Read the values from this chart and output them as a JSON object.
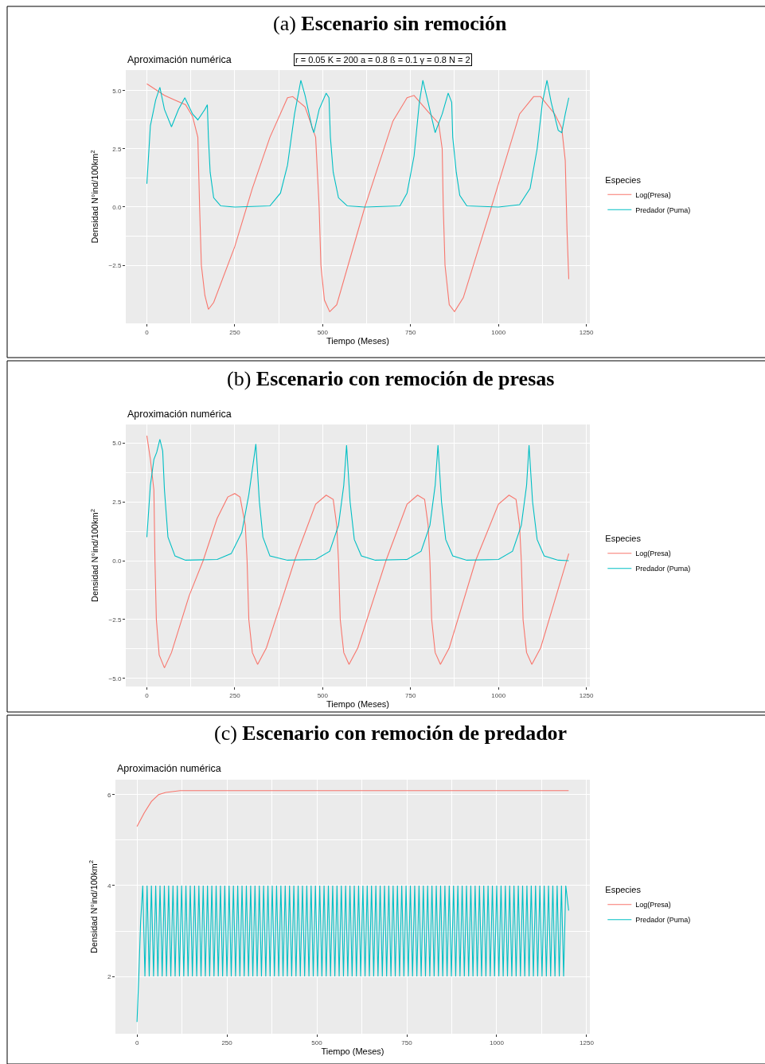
{
  "chart_data": [
    {
      "type": "line",
      "title": "(a) Escenario sin remoción",
      "subtitle": "Aproximación numérica",
      "xlabel": "Tiempo (Meses)",
      "ylabel": "Densidad N°ind/100km$^{2}$",
      "legend_title": "Especies",
      "annotations": [
        "r = 0.05 K = 200 a = 0.8 ß = 0.1 γ = 0.8 N = 2"
      ],
      "xlim": [
        -60,
        1260
      ],
      "xticks": [
        0,
        250,
        500,
        750,
        1000,
        1250
      ],
      "ylim": [
        -5.0,
        5.89
      ],
      "yticks": [
        {
          "value": -2.5,
          "label": "−2.5"
        },
        {
          "value": 0,
          "label": "0.0"
        },
        {
          "value": 2.5,
          "label": "2.5"
        },
        {
          "value": 5,
          "label": "5.0"
        }
      ],
      "grid": true,
      "legend": "right",
      "series": [
        {
          "name": "Log(Presa)",
          "color": "#f8766d",
          "x": [
            0,
            50,
            80,
            110,
            130,
            145,
            150,
            155,
            165,
            175,
            190,
            250,
            300,
            350,
            400,
            415,
            450,
            480,
            490,
            495,
            505,
            520,
            540,
            620,
            700,
            740,
            760,
            800,
            830,
            840,
            843,
            848,
            860,
            875,
            900,
            980,
            1060,
            1100,
            1120,
            1160,
            1180,
            1190,
            1195,
            1200
          ],
          "values": [
            5.3,
            4.8,
            4.6,
            4.4,
            3.9,
            3.0,
            0,
            -2.5,
            -3.8,
            -4.4,
            -4.1,
            -1.7,
            0.8,
            3.0,
            4.7,
            4.75,
            4.3,
            3.0,
            0,
            -2.5,
            -4.0,
            -4.5,
            -4.2,
            0,
            3.7,
            4.7,
            4.8,
            4.1,
            3.6,
            2.5,
            0,
            -2.5,
            -4.2,
            -4.5,
            -3.9,
            0,
            4.0,
            4.75,
            4.75,
            4.0,
            3.4,
            2.0,
            -1.0,
            -3.1
          ]
        },
        {
          "name": "Predador (Puma)",
          "color": "#00bfc4",
          "x": [
            0,
            10,
            25,
            37,
            50,
            70,
            90,
            108,
            130,
            145,
            165,
            172,
            175,
            180,
            190,
            210,
            250,
            350,
            380,
            400,
            420,
            438,
            450,
            470,
            475,
            490,
            510,
            518,
            522,
            530,
            545,
            570,
            620,
            720,
            740,
            760,
            775,
            785,
            800,
            820,
            840,
            857,
            867,
            870,
            880,
            890,
            910,
            1000,
            1060,
            1090,
            1110,
            1125,
            1138,
            1150,
            1170,
            1180,
            1190,
            1200
          ],
          "values": [
            1.0,
            3.5,
            4.6,
            5.15,
            4.2,
            3.45,
            4.2,
            4.7,
            4.0,
            3.75,
            4.2,
            4.4,
            3.0,
            1.5,
            0.4,
            0.05,
            0,
            0.05,
            0.6,
            1.8,
            4.0,
            5.45,
            4.8,
            3.4,
            3.2,
            4.2,
            4.9,
            4.7,
            3.0,
            1.5,
            0.4,
            0.05,
            0,
            0.05,
            0.6,
            2.2,
            4.5,
            5.45,
            4.5,
            3.2,
            4.0,
            4.9,
            4.5,
            3.0,
            1.5,
            0.5,
            0.05,
            0,
            0.1,
            0.8,
            2.5,
            4.5,
            5.45,
            4.5,
            3.3,
            3.2,
            4.0,
            4.7
          ]
        }
      ]
    },
    {
      "type": "line",
      "title": "(b) Escenario con remoción de presas",
      "subtitle": "Aproximación numérica",
      "xlabel": "Tiempo (Meses)",
      "ylabel": "Densidad N°ind/100km$^{2}$",
      "legend_title": "Especies",
      "xlim": [
        -60,
        1260
      ],
      "xticks": [
        0,
        250,
        500,
        750,
        1000,
        1250
      ],
      "ylim": [
        -5.34,
        5.78
      ],
      "yticks": [
        {
          "value": -5,
          "label": "−5.0"
        },
        {
          "value": -2.5,
          "label": "−2.5"
        },
        {
          "value": 0,
          "label": "0.0"
        },
        {
          "value": 2.5,
          "label": "2.5"
        },
        {
          "value": 5,
          "label": "5.0"
        }
      ],
      "grid": true,
      "legend": "right",
      "series": [
        {
          "name": "Log(Presa)",
          "color": "#f8766d",
          "x": [
            0,
            10,
            20,
            23,
            27,
            35,
            50,
            70,
            120,
            160,
            200,
            230,
            250,
            265,
            280,
            285,
            290,
            300,
            315,
            340,
            420,
            480,
            510,
            530,
            540,
            545,
            550,
            560,
            575,
            600,
            680,
            740,
            770,
            790,
            800,
            805,
            810,
            820,
            835,
            860,
            935,
            1000,
            1030,
            1050,
            1060,
            1065,
            1070,
            1080,
            1095,
            1120,
            1200
          ],
          "values": [
            5.3,
            4.3,
            3.0,
            0,
            -2.5,
            -4.0,
            -4.55,
            -3.9,
            -1.5,
            0,
            1.8,
            2.7,
            2.85,
            2.7,
            1.5,
            0,
            -2.5,
            -3.9,
            -4.4,
            -3.7,
            0,
            2.4,
            2.78,
            2.6,
            1.5,
            0,
            -2.5,
            -3.9,
            -4.4,
            -3.7,
            0,
            2.4,
            2.78,
            2.6,
            1.5,
            0,
            -2.5,
            -3.9,
            -4.4,
            -3.7,
            0,
            2.4,
            2.78,
            2.6,
            1.5,
            0,
            -2.5,
            -3.9,
            -4.4,
            -3.7,
            0.3
          ]
        },
        {
          "name": "Predador (Puma)",
          "color": "#00bfc4",
          "x": [
            0,
            10,
            20,
            28,
            37,
            45,
            50,
            60,
            80,
            110,
            200,
            240,
            270,
            290,
            310,
            320,
            330,
            350,
            400,
            480,
            520,
            545,
            560,
            568,
            578,
            590,
            610,
            650,
            740,
            780,
            805,
            820,
            828,
            838,
            850,
            870,
            910,
            1000,
            1040,
            1065,
            1080,
            1087,
            1097,
            1110,
            1130,
            1170,
            1200
          ],
          "values": [
            1.0,
            3.2,
            4.3,
            4.6,
            5.15,
            4.65,
            3.0,
            1.0,
            0.2,
            0.02,
            0.05,
            0.3,
            1.2,
            2.8,
            4.95,
            2.5,
            1.0,
            0.2,
            0.02,
            0.05,
            0.4,
            1.5,
            3.2,
            4.9,
            2.5,
            0.9,
            0.2,
            0.02,
            0.05,
            0.4,
            1.5,
            3.2,
            4.9,
            2.5,
            0.9,
            0.2,
            0.02,
            0.05,
            0.4,
            1.5,
            3.2,
            4.9,
            2.5,
            0.9,
            0.2,
            0.02,
            0
          ]
        }
      ]
    },
    {
      "type": "line",
      "title": "(c) Escenario con remoción de predador",
      "subtitle": "Aproximación numérica",
      "xlabel": "Tiempo (Meses)",
      "ylabel": "Densidad N°ind/100km$^{2}$",
      "legend_title": "Especies",
      "xlim": [
        -60,
        1259
      ],
      "xticks": [
        0,
        250,
        500,
        750,
        1000,
        1250
      ],
      "ylim": [
        0.74,
        6.33
      ],
      "yticks": [
        2,
        4,
        6
      ],
      "grid": true,
      "legend": "right",
      "series": [
        {
          "name": "Log(Presa)",
          "color": "#f8766d",
          "x": [
            0,
            20,
            40,
            60,
            80,
            120,
            1200
          ],
          "values": [
            5.3,
            5.6,
            5.85,
            6.0,
            6.05,
            6.09,
            6.09
          ]
        },
        {
          "name": "Predador (Puma)",
          "color": "#00bfc4",
          "x": [
            0,
            5,
            10,
            16,
            22,
            28,
            34,
            40,
            46,
            52,
            58,
            64,
            70,
            76,
            82,
            88,
            94,
            100,
            106,
            112,
            118,
            124,
            130,
            136,
            142,
            148,
            154,
            160,
            166,
            172,
            178,
            184,
            190,
            196,
            202,
            208,
            214,
            220,
            226,
            232,
            238,
            244,
            250,
            256,
            262,
            268,
            274,
            280,
            286,
            292,
            298,
            304,
            310,
            316,
            322,
            328,
            334,
            340,
            346,
            352,
            358,
            364,
            370,
            376,
            382,
            388,
            394,
            400,
            406,
            412,
            418,
            424,
            430,
            436,
            442,
            448,
            454,
            460,
            466,
            472,
            478,
            484,
            490,
            496,
            502,
            508,
            514,
            520,
            526,
            532,
            538,
            544,
            550,
            556,
            562,
            568,
            574,
            580,
            586,
            592,
            598,
            604,
            610,
            616,
            622,
            628,
            634,
            640,
            646,
            652,
            658,
            664,
            670,
            676,
            682,
            688,
            694,
            700,
            706,
            712,
            718,
            724,
            730,
            736,
            742,
            748,
            754,
            760,
            766,
            772,
            778,
            784,
            790,
            796,
            802,
            808,
            814,
            820,
            826,
            832,
            838,
            844,
            850,
            856,
            862,
            868,
            874,
            880,
            886,
            892,
            898,
            904,
            910,
            916,
            922,
            928,
            934,
            940,
            946,
            952,
            958,
            964,
            970,
            976,
            982,
            988,
            994,
            1000,
            1006,
            1012,
            1018,
            1024,
            1030,
            1036,
            1042,
            1048,
            1054,
            1060,
            1066,
            1072,
            1078,
            1084,
            1090,
            1096,
            1102,
            1108,
            1114,
            1120,
            1126,
            1132,
            1138,
            1144,
            1150,
            1156,
            1162,
            1168,
            1174,
            1180,
            1186,
            1192,
            1200
          ],
          "values": [
            1.0,
            2.0,
            3.2,
            4,
            2,
            4,
            2,
            4,
            2,
            4,
            2,
            4,
            2,
            4,
            2,
            4,
            2,
            4,
            2,
            4,
            2,
            4,
            2,
            4,
            2,
            4,
            2,
            4,
            2,
            4,
            2,
            4,
            2,
            4,
            2,
            4,
            2,
            4,
            2,
            4,
            2,
            4,
            2,
            4,
            2,
            4,
            2,
            4,
            2,
            4,
            2,
            4,
            2,
            4,
            2,
            4,
            2,
            4,
            2,
            4,
            2,
            4,
            2,
            4,
            2,
            4,
            2,
            4,
            2,
            4,
            2,
            4,
            2,
            4,
            2,
            4,
            2,
            4,
            2,
            4,
            2,
            4,
            2,
            4,
            2,
            4,
            2,
            4,
            2,
            4,
            2,
            4,
            2,
            4,
            2,
            4,
            2,
            4,
            2,
            4,
            2,
            4,
            2,
            4,
            2,
            4,
            2,
            4,
            2,
            4,
            2,
            4,
            2,
            4,
            2,
            4,
            2,
            4,
            2,
            4,
            2,
            4,
            2,
            4,
            2,
            4,
            2,
            4,
            2,
            4,
            2,
            4,
            2,
            4,
            2,
            4,
            2,
            4,
            2,
            4,
            2,
            4,
            2,
            4,
            2,
            4,
            2,
            4,
            2,
            4,
            2,
            4,
            2,
            4,
            2,
            4,
            2,
            4,
            2,
            4,
            2,
            4,
            2,
            4,
            2,
            4,
            2,
            4,
            2,
            4,
            2,
            4,
            2,
            4,
            2,
            4,
            2,
            4,
            2,
            4,
            2,
            4,
            2,
            4,
            2,
            4,
            2,
            4,
            2,
            4,
            2,
            4,
            2,
            4,
            2,
            4,
            2,
            4,
            2,
            4,
            3.45
          ]
        }
      ]
    }
  ]
}
